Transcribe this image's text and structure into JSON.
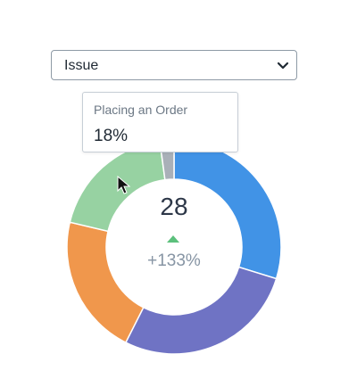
{
  "dropdown": {
    "selected": "Issue"
  },
  "chart_data": {
    "type": "pie",
    "donut": true,
    "slices": [
      {
        "value": 28,
        "color": "#4193e6"
      },
      {
        "value": 26,
        "color": "#6f73c4"
      },
      {
        "value": 20,
        "color": "#f0974c"
      },
      {
        "value": 18,
        "color": "#97d2a2"
      },
      {
        "value": 2,
        "color": "#a9b0b8"
      }
    ]
  },
  "summary": {
    "value": "28",
    "change": "+133%",
    "trend": "up"
  },
  "tooltip": {
    "label": "Placing an Order",
    "value": "18%"
  },
  "colors": {
    "trend_up": "#5cc07c"
  }
}
